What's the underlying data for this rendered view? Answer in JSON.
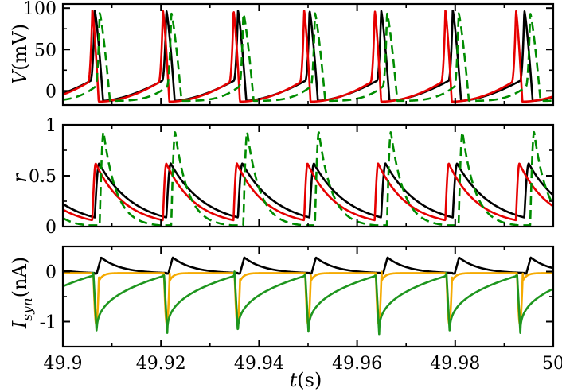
{
  "chart_data": [
    {
      "type": "line",
      "panel": "top",
      "ylabel_symbol": "V",
      "ylabel_unit": "(mV)",
      "xlim": [
        49.9,
        50.0
      ],
      "ylim": [
        -17,
        105
      ],
      "yticks": [
        0,
        50,
        100
      ],
      "ytick_labels": [
        "0",
        "50",
        "100"
      ],
      "x_tick_labels_shown": false,
      "series": [
        {
          "name": "black",
          "color": "#000000",
          "dash": "solid",
          "spikes": [
            49.9065,
            49.9211,
            49.9357,
            49.9503,
            49.9649,
            49.9795,
            49.9941
          ],
          "peak": 97,
          "baseline_before_spike": 12,
          "minimum": -12
        },
        {
          "name": "red",
          "color": "#e60000",
          "dash": "solid",
          "spikes": [
            49.906,
            49.9204,
            49.9348,
            49.9492,
            49.9636,
            49.978,
            49.9924
          ],
          "peak": 97,
          "baseline_before_spike": 10,
          "minimum": -13
        },
        {
          "name": "green",
          "color": "#008c00",
          "dash": "dashed",
          "spikes": [
            49.9075,
            49.9221,
            49.9368,
            49.9514,
            49.9661,
            49.9807,
            49.9953
          ],
          "peak": 94,
          "baseline_before_spike": 5,
          "minimum": -12
        }
      ]
    },
    {
      "type": "line",
      "panel": "middle",
      "ylabel_symbol": "r",
      "xlim": [
        49.9,
        50.0
      ],
      "ylim": [
        0,
        1.0
      ],
      "yticks": [
        0,
        0.5,
        1
      ],
      "ytick_labels": [
        "0",
        "0.5",
        "1"
      ],
      "x_tick_labels_shown": false,
      "series": [
        {
          "name": "black",
          "color": "#000000",
          "dash": "solid",
          "peak": 0.62,
          "trough": 0.09
        },
        {
          "name": "red",
          "color": "#e60000",
          "dash": "solid",
          "peak": 0.62,
          "trough": 0.07
        },
        {
          "name": "green",
          "color": "#008c00",
          "dash": "dashed",
          "peak": 0.93,
          "trough": 0.02
        }
      ]
    },
    {
      "type": "line",
      "panel": "bottom",
      "ylabel_symbol": "I",
      "ylabel_subscript": "syn",
      "ylabel_unit": "(nA)",
      "xlim": [
        49.9,
        50.0
      ],
      "ylim": [
        -1.5,
        0.5
      ],
      "yticks": [
        -1,
        0
      ],
      "ytick_labels": [
        "-1",
        "0"
      ],
      "xticks": [
        49.9,
        49.92,
        49.94,
        49.96,
        49.98,
        50.0
      ],
      "xtick_labels": [
        "49.9",
        "49.92",
        "49.94",
        "49.96",
        "49.98",
        "50"
      ],
      "xlabel_symbol": "t",
      "xlabel_unit": "(s)",
      "series": [
        {
          "name": "black",
          "color": "#000000",
          "dash": "solid",
          "peak": 0.28,
          "trough": -0.04
        },
        {
          "name": "orange",
          "color": "#f5aa00",
          "dash": "solid",
          "spike_min": -1.05,
          "baseline": -0.03
        },
        {
          "name": "green",
          "color": "#1e961e",
          "dash": "solid",
          "spike_min": -1.25,
          "recovery_end": -0.08
        }
      ]
    }
  ]
}
